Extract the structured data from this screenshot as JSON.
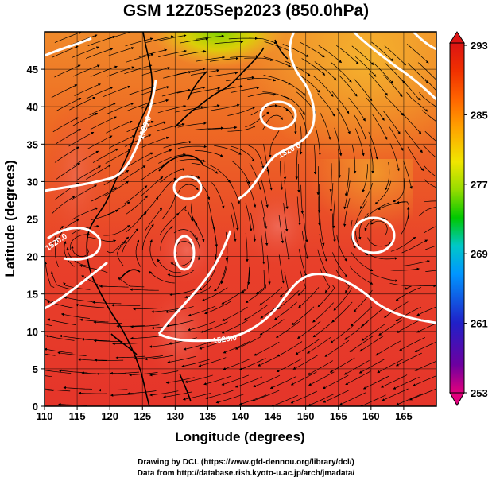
{
  "title": "GSM 12Z05Sep2023 (850.0hPa)",
  "axes": {
    "xlabel": "Longitude (degrees)",
    "ylabel": "Latitude  (degrees)",
    "xlim": [
      110,
      170
    ],
    "ylim": [
      0,
      50
    ],
    "xticks": [
      "110",
      "115",
      "120",
      "125",
      "130",
      "135",
      "140",
      "145",
      "150",
      "155",
      "160",
      "165"
    ],
    "yticks": [
      "0",
      "5",
      "10",
      "15",
      "20",
      "25",
      "30",
      "35",
      "40",
      "45"
    ]
  },
  "colorbar": {
    "labels": [
      "293",
      "285",
      "277",
      "269",
      "261",
      "253"
    ],
    "min": 253,
    "max": 293,
    "colors": [
      "#e3007d",
      "#6d00a0",
      "#2020c8",
      "#0096ff",
      "#00c8c8",
      "#00c800",
      "#96dc00",
      "#f0e600",
      "#ffa000",
      "#ff6400",
      "#f03000",
      "#dc1414"
    ]
  },
  "contour_labels": [
    "1520.0",
    "1520.0",
    "1520.0",
    "1520.0"
  ],
  "credits": {
    "line1": "Drawing by DCL (https://www.gfd-dennou.org/library/dcl/)",
    "line2": "Data from http://database.rish.kyoto-u.ac.jp/arch/jmadata/"
  }
}
